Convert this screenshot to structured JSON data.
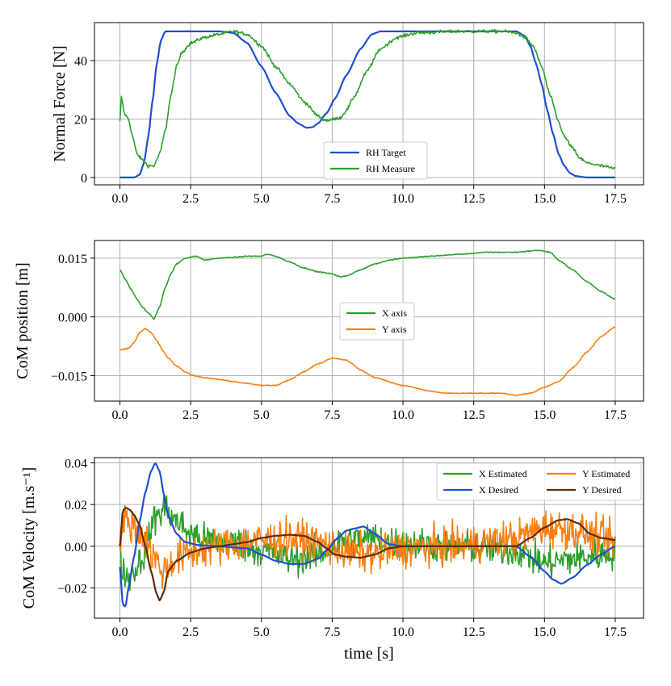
{
  "colors": {
    "blue": "#1f4fd1",
    "green": "#2ca02c",
    "orange": "#ff7f0e",
    "brown": "#5a2d0c"
  },
  "chart_data": [
    {
      "type": "line",
      "ylabel": "Normal Force [N]",
      "xlabel": "",
      "xlim": [
        -0.9,
        18.5
      ],
      "ylim": [
        -2.5,
        53
      ],
      "xticks": [
        0.0,
        2.5,
        5.0,
        7.5,
        10.0,
        12.5,
        15.0,
        17.5
      ],
      "xtick_labels": [
        "0.0",
        "2.5",
        "5.0",
        "7.5",
        "10.0",
        "12.5",
        "15.0",
        "17.5"
      ],
      "yticks": [
        0,
        20,
        40
      ],
      "ytick_labels": [
        "0",
        "20",
        "40"
      ],
      "grid": true,
      "legend_position": "lower-center",
      "series": [
        {
          "name": "RH Target",
          "color": "#1f4fd1",
          "noise": 0,
          "x": [
            0,
            0.5,
            0.7,
            0.85,
            1.0,
            1.15,
            1.3,
            1.45,
            1.6,
            3.5,
            4.0,
            4.5,
            5.0,
            5.5,
            6.0,
            6.3,
            6.6,
            6.8,
            7.0,
            7.3,
            7.6,
            8.0,
            8.5,
            8.9,
            9.2,
            14.0,
            14.3,
            14.5,
            14.7,
            14.9,
            15.1,
            15.3,
            15.5,
            15.7,
            15.9,
            16.1,
            16.5,
            17.5
          ],
          "y": [
            0,
            0,
            1,
            5,
            14,
            26,
            39,
            47,
            50,
            50,
            49.5,
            46,
            38,
            29,
            21,
            18.5,
            17,
            17.2,
            18.5,
            22,
            27,
            35,
            44,
            49,
            50,
            50,
            48.5,
            45,
            39,
            32,
            23,
            15,
            8,
            4,
            1.5,
            0.5,
            0,
            0
          ]
        },
        {
          "name": "RH Measure",
          "color": "#2ca02c",
          "noise": 0.6,
          "x": [
            0,
            0.05,
            0.15,
            0.3,
            0.45,
            0.6,
            0.8,
            1.0,
            1.2,
            1.4,
            1.6,
            1.8,
            2.0,
            2.2,
            2.5,
            3.0,
            3.5,
            4.0,
            4.5,
            5.0,
            5.5,
            6.0,
            6.5,
            7.0,
            7.3,
            7.6,
            7.8,
            8.0,
            8.3,
            8.7,
            9.2,
            9.8,
            10.5,
            12.0,
            13.5,
            14.0,
            14.3,
            14.6,
            14.9,
            15.2,
            15.5,
            15.7,
            16.0,
            16.2,
            16.5,
            17.0,
            17.5
          ],
          "y": [
            19,
            27.5,
            22,
            20,
            14,
            8,
            6,
            4,
            4,
            8,
            16,
            28,
            38,
            43,
            46,
            48,
            49,
            50,
            49,
            45,
            38,
            32,
            26,
            21,
            19.5,
            20,
            20.5,
            23,
            28,
            36,
            44,
            48,
            49.5,
            50,
            50,
            49.5,
            48,
            45,
            38,
            28,
            19,
            14,
            10,
            7,
            5,
            4,
            3
          ]
        }
      ]
    },
    {
      "type": "line",
      "ylabel": "CoM position [m]",
      "xlabel": "",
      "xlim": [
        -0.9,
        18.5
      ],
      "ylim": [
        -0.0215,
        0.0195
      ],
      "xticks": [
        0.0,
        2.5,
        5.0,
        7.5,
        10.0,
        12.5,
        15.0,
        17.5
      ],
      "xtick_labels": [
        "0.0",
        "2.5",
        "5.0",
        "7.5",
        "10.0",
        "12.5",
        "15.0",
        "17.5"
      ],
      "yticks": [
        -0.015,
        0.0,
        0.015
      ],
      "ytick_labels": [
        "−0.015",
        "0.000",
        "0.015"
      ],
      "grid": true,
      "legend_position": "center",
      "series": [
        {
          "name": "X axis",
          "color": "#2ca02c",
          "noise": 0.00012,
          "x": [
            0,
            0.2,
            0.4,
            0.6,
            0.8,
            1.0,
            1.2,
            1.4,
            1.6,
            1.8,
            2.0,
            2.3,
            2.7,
            3.0,
            3.5,
            4.0,
            4.5,
            5.0,
            5.2,
            5.5,
            6.0,
            6.5,
            7.0,
            7.5,
            7.8,
            8.0,
            8.5,
            9.0,
            9.5,
            10.0,
            11.0,
            12.0,
            13.0,
            13.5,
            14.0,
            14.8,
            15.2,
            15.5,
            16.0,
            16.5,
            17.0,
            17.5
          ],
          "y": [
            0.012,
            0.0095,
            0.007,
            0.0045,
            0.0025,
            0.001,
            -0.0005,
            0.0025,
            0.0075,
            0.011,
            0.0135,
            0.015,
            0.0155,
            0.0145,
            0.015,
            0.0152,
            0.0155,
            0.0155,
            0.016,
            0.0155,
            0.014,
            0.0125,
            0.0115,
            0.011,
            0.0102,
            0.0105,
            0.012,
            0.0135,
            0.0145,
            0.015,
            0.0155,
            0.016,
            0.0165,
            0.0165,
            0.0165,
            0.017,
            0.0165,
            0.0145,
            0.012,
            0.009,
            0.0065,
            0.0045
          ]
        },
        {
          "name": "Y axis",
          "color": "#ff7f0e",
          "noise": 0.00012,
          "x": [
            0,
            0.3,
            0.5,
            0.7,
            0.9,
            1.1,
            1.3,
            1.5,
            1.7,
            2.0,
            2.3,
            2.6,
            3.0,
            3.5,
            4.0,
            4.5,
            5.0,
            5.5,
            6.0,
            6.5,
            7.0,
            7.5,
            8.0,
            8.5,
            9.0,
            10.0,
            11.0,
            11.5,
            12.5,
            13.5,
            14.0,
            14.5,
            15.0,
            15.5,
            16.0,
            16.5,
            17.0,
            17.5
          ],
          "y": [
            -0.0085,
            -0.008,
            -0.0065,
            -0.004,
            -0.003,
            -0.004,
            -0.006,
            -0.0085,
            -0.0105,
            -0.0125,
            -0.014,
            -0.015,
            -0.0155,
            -0.016,
            -0.0165,
            -0.017,
            -0.0175,
            -0.0175,
            -0.016,
            -0.014,
            -0.012,
            -0.0105,
            -0.011,
            -0.0135,
            -0.0155,
            -0.0175,
            -0.019,
            -0.0195,
            -0.0195,
            -0.0195,
            -0.02,
            -0.0195,
            -0.018,
            -0.0165,
            -0.013,
            -0.009,
            -0.005,
            -0.0025
          ]
        }
      ]
    },
    {
      "type": "line",
      "ylabel": "CoM Velocity [m.s⁻¹]",
      "xlabel": "time [s]",
      "xlim": [
        -0.9,
        18.5
      ],
      "ylim": [
        -0.0345,
        0.0425
      ],
      "xticks": [
        0.0,
        2.5,
        5.0,
        7.5,
        10.0,
        12.5,
        15.0,
        17.5
      ],
      "xtick_labels": [
        "0.0",
        "2.5",
        "5.0",
        "7.5",
        "10.0",
        "12.5",
        "15.0",
        "17.5"
      ],
      "yticks": [
        -0.02,
        0.0,
        0.02,
        0.04
      ],
      "ytick_labels": [
        "−0.02",
        "0.00",
        "0.02",
        "0.04"
      ],
      "grid": true,
      "legend_position": "top-right",
      "series": [
        {
          "name": "X Estimated",
          "color": "#2ca02c",
          "noise": 0.0085,
          "x": [
            0,
            0.2,
            0.5,
            0.8,
            1.0,
            1.3,
            1.6,
            2.0,
            2.5,
            3.0,
            4.0,
            5.0,
            6.0,
            7.0,
            8.0,
            9.0,
            10.0,
            12.0,
            14.0,
            15.0,
            16.0,
            17.0,
            17.5
          ],
          "y": [
            -0.005,
            -0.015,
            -0.012,
            -0.005,
            0.005,
            0.015,
            0.018,
            0.012,
            0.006,
            0.003,
            0.002,
            -0.002,
            -0.006,
            -0.004,
            0.003,
            0.004,
            0.001,
            0.0,
            -0.002,
            -0.008,
            -0.006,
            -0.004,
            -0.003
          ]
        },
        {
          "name": "Y Estimated",
          "color": "#ff7f0e",
          "noise": 0.0095,
          "x": [
            0,
            0.2,
            0.5,
            0.8,
            1.2,
            1.5,
            2.0,
            2.5,
            3.0,
            4.0,
            5.0,
            6.0,
            7.0,
            8.0,
            9.0,
            10.0,
            12.0,
            14.0,
            15.0,
            16.0,
            17.0,
            17.5
          ],
          "y": [
            0.005,
            0.012,
            0.01,
            0.005,
            -0.005,
            -0.012,
            -0.006,
            -0.003,
            -0.001,
            0.001,
            0.003,
            0.004,
            0.002,
            -0.003,
            -0.004,
            -0.001,
            0.0,
            0.004,
            0.009,
            0.008,
            0.004,
            0.002
          ]
        },
        {
          "name": "X Desired",
          "color": "#1f4fd1",
          "noise": 0,
          "x": [
            0,
            0.1,
            0.2,
            0.3,
            0.5,
            0.7,
            0.9,
            1.1,
            1.25,
            1.4,
            1.55,
            1.7,
            2.0,
            2.3,
            2.8,
            3.5,
            4.5,
            5.0,
            5.5,
            6.0,
            6.5,
            7.0,
            7.3,
            7.7,
            8.0,
            8.3,
            8.6,
            9.0,
            9.5,
            10.0,
            12.0,
            14.0,
            14.5,
            15.0,
            15.3,
            15.6,
            16.0,
            16.5,
            17.0,
            17.5
          ],
          "y": [
            -0.01,
            -0.028,
            -0.029,
            -0.02,
            -0.005,
            0.012,
            0.026,
            0.036,
            0.04,
            0.036,
            0.025,
            0.015,
            0.006,
            0.002,
            0.0005,
            0.0,
            -0.001,
            -0.004,
            -0.007,
            -0.0085,
            -0.0085,
            -0.006,
            -0.002,
            0.004,
            0.0075,
            0.0085,
            0.0095,
            0.006,
            0.001,
            0.0,
            0.0,
            0.0,
            -0.005,
            -0.012,
            -0.016,
            -0.018,
            -0.015,
            -0.009,
            -0.004,
            0.0
          ]
        },
        {
          "name": "Y Desired",
          "color": "#5a2d0c",
          "noise": 0,
          "x": [
            0,
            0.1,
            0.2,
            0.35,
            0.5,
            0.7,
            0.9,
            1.1,
            1.3,
            1.4,
            1.55,
            1.7,
            2.0,
            2.5,
            3.0,
            3.5,
            4.0,
            4.5,
            5.0,
            5.5,
            6.0,
            6.5,
            7.0,
            7.3,
            7.6,
            8.0,
            8.5,
            9.0,
            9.5,
            10.0,
            12.0,
            14.0,
            14.5,
            15.0,
            15.5,
            15.8,
            16.2,
            16.6,
            17.0,
            17.5
          ],
          "y": [
            0.0,
            0.017,
            0.0185,
            0.0175,
            0.015,
            0.01,
            0.0,
            -0.012,
            -0.023,
            -0.026,
            -0.022,
            -0.012,
            -0.007,
            -0.003,
            -0.001,
            0.0,
            0.001,
            0.002,
            0.004,
            0.005,
            0.0055,
            0.005,
            0.002,
            -0.001,
            -0.004,
            -0.005,
            -0.0055,
            -0.004,
            -0.001,
            0.0,
            0.0,
            0.0,
            0.004,
            0.009,
            0.0125,
            0.013,
            0.011,
            0.006,
            0.004,
            0.003
          ]
        }
      ]
    }
  ]
}
